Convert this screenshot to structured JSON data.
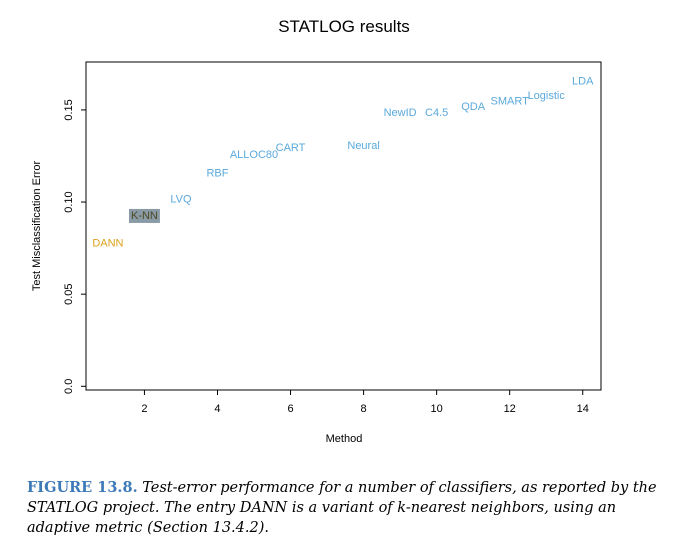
{
  "chart_data": {
    "type": "scatter",
    "title": "STATLOG results",
    "xlabel": "Method",
    "ylabel": "Test Misclassification Error",
    "xlim": [
      0.4,
      14.5
    ],
    "ylim": [
      -0.002,
      0.176
    ],
    "xticks": [
      2,
      4,
      6,
      8,
      10,
      12,
      14
    ],
    "yticks": [
      0.0,
      0.05,
      0.1,
      0.15
    ],
    "ytick_labels": [
      "0.0",
      "0.05",
      "0.10",
      "0.15"
    ],
    "grid": false,
    "colors": {
      "default": "#5aa9dc",
      "dann": "#d9a21a",
      "knn_text": "#4a4a22",
      "knn_box": "#8a9aa6"
    },
    "points": [
      {
        "label": "DANN",
        "x": 1,
        "y": 0.078,
        "highlight": "dann"
      },
      {
        "label": "K-NN",
        "x": 2,
        "y": 0.093,
        "highlight": "knn"
      },
      {
        "label": "LVQ",
        "x": 3,
        "y": 0.102
      },
      {
        "label": "RBF",
        "x": 4,
        "y": 0.116
      },
      {
        "label": "ALLOC80",
        "x": 5,
        "y": 0.126
      },
      {
        "label": "CART",
        "x": 6,
        "y": 0.13
      },
      {
        "label": "Neural",
        "x": 8,
        "y": 0.131
      },
      {
        "label": "NewID",
        "x": 9,
        "y": 0.149
      },
      {
        "label": "C4.5",
        "x": 10,
        "y": 0.149
      },
      {
        "label": "QDA",
        "x": 11,
        "y": 0.152
      },
      {
        "label": "SMART",
        "x": 12,
        "y": 0.155
      },
      {
        "label": "Logistic",
        "x": 13,
        "y": 0.158
      },
      {
        "label": "LDA",
        "x": 14,
        "y": 0.166
      }
    ]
  },
  "caption": {
    "label": "FIGURE 13.8.",
    "text": "Test-error performance for a number of classifiers, as reported by the STATLOG project. The entry DANN is a variant of k-nearest neighbors, using an adaptive metric (Section 13.4.2)."
  }
}
